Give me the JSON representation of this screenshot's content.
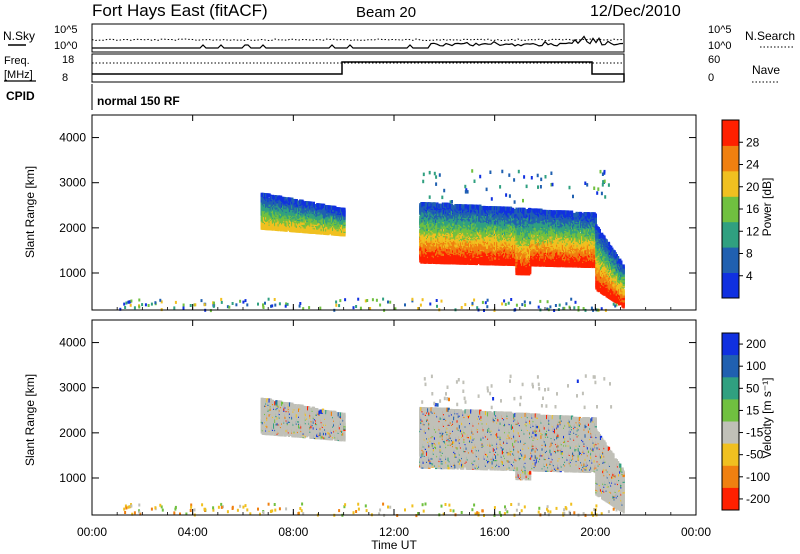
{
  "header": {
    "station": "Fort Hays East (fitACF)",
    "beam": "Beam 20",
    "date": "12/Dec/2010"
  },
  "aux_panels": {
    "nsky_label": "N.Sky",
    "nsearch_label": "N.Search",
    "nsky_ticks": [
      "10^5",
      "10^0"
    ],
    "nsearch_ticks": [
      "10^5",
      "10^0"
    ],
    "freq_label_1": "Freq.",
    "freq_label_2": "[MHz]",
    "freq_ticks": [
      "18",
      "8"
    ],
    "nave_label": "Nave",
    "nave_ticks": [
      "60",
      "0"
    ],
    "cpid_label": "CPID",
    "cpid_value": "normal 150 RF"
  },
  "chart_data": [
    {
      "type": "heatmap",
      "panel": "power",
      "xlabel": "",
      "ylabel": "Slant Range [km]",
      "x_ticks": [
        "00:00",
        "04:00",
        "08:00",
        "12:00",
        "16:00",
        "20:00",
        "00:00"
      ],
      "y_ticks": [
        "1000",
        "2000",
        "3000",
        "4000"
      ],
      "xlim_hours": [
        0,
        24
      ],
      "ylim_km": [
        180,
        4500
      ],
      "colorbar": {
        "label": "Power [dB]",
        "ticks": [
          "4",
          "8",
          "12",
          "16",
          "20",
          "24",
          "28"
        ],
        "colors": [
          "#1030e0",
          "#2060b0",
          "#30a080",
          "#70c040",
          "#f0c020",
          "#f08010",
          "#ff2000"
        ]
      },
      "regions": [
        {
          "t_start": 6.7,
          "t_end": 10.0,
          "r_top": 2800,
          "r_bottom": 2050,
          "intensity": "medium"
        },
        {
          "t_start": 13.0,
          "t_end": 20.0,
          "r_top": 2600,
          "r_bottom": 1300,
          "intensity": "high"
        },
        {
          "t_start": 20.0,
          "t_end": 21.1,
          "r_top": 2100,
          "r_bottom": 700,
          "intensity": "high"
        }
      ]
    },
    {
      "type": "heatmap",
      "panel": "velocity",
      "xlabel": "Time UT",
      "ylabel": "Slant Range [km]",
      "x_ticks": [
        "00:00",
        "04:00",
        "08:00",
        "12:00",
        "16:00",
        "20:00",
        "00:00"
      ],
      "y_ticks": [
        "1000",
        "2000",
        "3000",
        "4000"
      ],
      "xlim_hours": [
        0,
        24
      ],
      "ylim_km": [
        180,
        4500
      ],
      "colorbar": {
        "label": "Velocity [m s⁻¹]",
        "ticks": [
          "200",
          "100",
          "50",
          "15",
          "-15",
          "-50",
          "-100",
          "-200"
        ],
        "colors": [
          "#1030e0",
          "#2060b0",
          "#30a080",
          "#70c040",
          "#c0c0b8",
          "#f0c020",
          "#f08010",
          "#ff2000"
        ]
      },
      "regions": [
        {
          "t_start": 6.7,
          "t_end": 10.0,
          "r_top": 2800,
          "r_bottom": 2050,
          "dominant": "ground scatter"
        },
        {
          "t_start": 13.0,
          "t_end": 20.0,
          "r_top": 2600,
          "r_bottom": 1300,
          "dominant": "ground scatter"
        },
        {
          "t_start": 20.0,
          "t_end": 21.1,
          "r_top": 2100,
          "r_bottom": 700,
          "dominant": "ground scatter"
        }
      ]
    }
  ]
}
